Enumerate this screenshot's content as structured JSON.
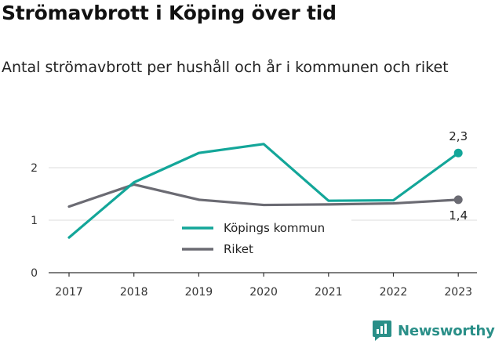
{
  "header": {
    "title": "Strömavbrott i Köping över tid",
    "subtitle": "Antal strömavbrott per hushåll och år i kommunen och riket"
  },
  "brand": {
    "name": "Newsworthy",
    "icon": "newsworthy-logo-icon"
  },
  "colors": {
    "kommun": "#13a699",
    "riket": "#6b6b73",
    "grid": "#dddddd",
    "axis": "#333333"
  },
  "chart_data": {
    "type": "line",
    "categories": [
      "2017",
      "2018",
      "2019",
      "2020",
      "2021",
      "2022",
      "2023"
    ],
    "ylim": [
      0,
      2.6
    ],
    "yticks": [
      "0",
      "1",
      "2"
    ],
    "grid": "horizontal",
    "legend": "center",
    "series": [
      {
        "name": "Köpings kommun",
        "values": [
          0.67,
          1.72,
          2.28,
          2.45,
          1.37,
          1.38,
          2.28
        ],
        "end_label": "2,3"
      },
      {
        "name": "Riket",
        "values": [
          1.26,
          1.68,
          1.39,
          1.29,
          1.3,
          1.32,
          1.39
        ],
        "end_label": "1,4"
      }
    ]
  }
}
